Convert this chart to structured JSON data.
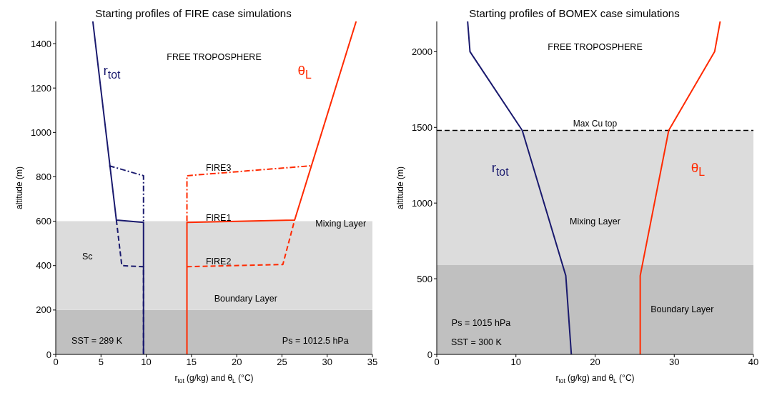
{
  "chart_data": [
    {
      "type": "line",
      "title": "Starting profiles of FIRE case simulations",
      "xlabel": "r$_{tot}$ (g/kg) and θ$_{L}$ (°C)",
      "ylabel": "altitude (m)",
      "xlim": [
        0,
        35
      ],
      "xticks": [
        0,
        5,
        10,
        15,
        20,
        25,
        30,
        35
      ],
      "ylim": [
        0,
        1500
      ],
      "yticks": [
        0,
        200,
        400,
        600,
        800,
        1000,
        1200,
        1400
      ],
      "grid": false,
      "legend": false,
      "marker": "none",
      "series": [
        {
          "color": "#1a1a6e",
          "line_style": "solid",
          "x": [
            4.1,
            6.7,
            9.7,
            9.7
          ],
          "values": [
            1500,
            605,
            595,
            0
          ]
        },
        {
          "color": "#1a1a6e",
          "line_style": "dotted",
          "x": [
            5.9,
            9.7,
            9.7
          ],
          "values": [
            850,
            805,
            600
          ]
        },
        {
          "color": "#1a1a6e",
          "line_style": "dashed",
          "x": [
            6.7,
            7.3,
            9.7,
            9.7
          ],
          "values": [
            605,
            400,
            395,
            0
          ]
        },
        {
          "color": "#ff2a00",
          "line_style": "solid",
          "x": [
            14.5,
            14.5,
            26.4,
            33.2
          ],
          "values": [
            0,
            595,
            605,
            1500
          ]
        },
        {
          "color": "#ff2a00",
          "line_style": "dotted",
          "x": [
            14.5,
            14.5,
            28.3
          ],
          "values": [
            600,
            805,
            850
          ]
        },
        {
          "color": "#ff2a00",
          "line_style": "dashed",
          "x": [
            14.5,
            25.1,
            26.4
          ],
          "values": [
            395,
            405,
            605
          ]
        }
      ],
      "bands": [
        {
          "axis": "y",
          "from": 0,
          "to": 200,
          "color": "#c0c0c0"
        },
        {
          "axis": "y",
          "from": 200,
          "to": 600,
          "color": "#dcdcdc"
        }
      ],
      "annotations": [
        "FREE TROPOSPHERE",
        "r$_{tot}$",
        "θ$_{L}$",
        "FIRE3",
        "FIRE1",
        "FIRE2",
        "Mixing Layer",
        "Sc",
        "Boundary Layer",
        "SST = 289 K",
        "Ps = 1012.5 hPa"
      ]
    },
    {
      "type": "line",
      "title": "Starting profiles of BOMEX case simulations",
      "xlabel": "r$_{tot}$ (g/kg) and θ$_{L}$ (°C)",
      "ylabel": "altitude (m)",
      "xlim": [
        0,
        40
      ],
      "xticks": [
        0,
        10,
        20,
        30,
        40
      ],
      "ylim": [
        0,
        2200
      ],
      "yticks": [
        0,
        500,
        1000,
        1500,
        2000
      ],
      "grid": false,
      "legend": false,
      "marker": "none",
      "series": [
        {
          "color": "#1a1a6e",
          "line_style": "solid",
          "x": [
            17,
            16.3,
            10.8,
            4.2,
            3.9
          ],
          "values": [
            0,
            520,
            1480,
            2000,
            2200
          ]
        },
        {
          "color": "#ff2a00",
          "line_style": "solid",
          "x": [
            25.7,
            25.7,
            29.3,
            35.1,
            35.8
          ],
          "values": [
            0,
            520,
            1480,
            2000,
            2200
          ]
        }
      ],
      "bands": [
        {
          "axis": "y",
          "from": 0,
          "to": 590,
          "color": "#c0c0c0"
        },
        {
          "axis": "y",
          "from": 590,
          "to": 1480,
          "color": "#dcdcdc"
        }
      ],
      "ref_lines": [
        {
          "axis": "y",
          "value": 1480,
          "label": "Max Cu top",
          "color": "#000000",
          "line_style": "dashed"
        }
      ],
      "annotations": [
        "FREE TROPOSPHERE",
        "r$_{tot}$",
        "θ$_{L}$",
        "Mixing Layer",
        "Boundary Layer",
        "Ps = 1015 hPa",
        "SST = 300 K"
      ]
    }
  ]
}
